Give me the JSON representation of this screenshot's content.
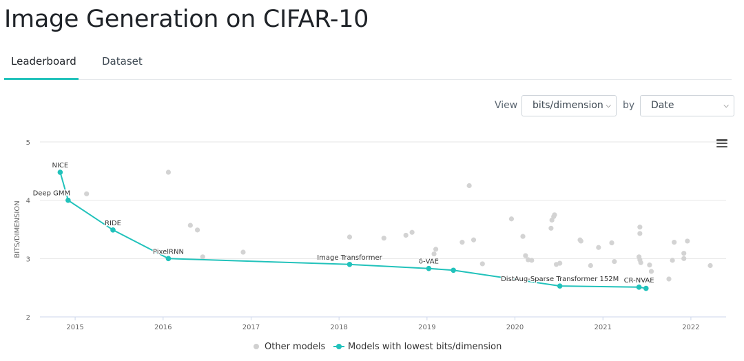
{
  "page": {
    "title": "Image Generation on CIFAR-10"
  },
  "tabs": [
    {
      "label": "Leaderboard",
      "active": true
    },
    {
      "label": "Dataset",
      "active": false
    }
  ],
  "controls": {
    "view_label": "View",
    "metric_selected": "bits/dimension",
    "by_label": "by",
    "sort_selected": "Date"
  },
  "icons": {
    "chevron": "chevron-down-icon",
    "menu": "hamburger-menu-icon"
  },
  "colors": {
    "accent": "#21c2bb",
    "other": "#d3d3d3",
    "grid": "#e6e6e6"
  },
  "chart_data": {
    "type": "scatter",
    "ylabel": "BITS/DIMENSION",
    "xlabel": "",
    "xlim": [
      2014.6,
      2022.4
    ],
    "ylim": [
      2,
      5.2
    ],
    "x_ticks": [
      "2015",
      "2016",
      "2017",
      "2018",
      "2019",
      "2020",
      "2021",
      "2022"
    ],
    "y_ticks": [
      "2",
      "3",
      "4",
      "5"
    ],
    "grid": "horizontal",
    "legend": [
      "Other models",
      "Models with lowest bits/dimension"
    ],
    "legend_position": "bottom-center",
    "best_series": {
      "name": "Models with lowest bits/dimension",
      "points": [
        {
          "x": 2014.83,
          "y": 4.48,
          "label": "NICE"
        },
        {
          "x": 2014.92,
          "y": 4.0,
          "label": "Deep GMM"
        },
        {
          "x": 2015.43,
          "y": 3.49,
          "label": "RIDE"
        },
        {
          "x": 2016.06,
          "y": 3.0,
          "label": "PixelRNN"
        },
        {
          "x": 2018.12,
          "y": 2.9,
          "label": "Image Transformer"
        },
        {
          "x": 2019.02,
          "y": 2.83,
          "label": "δ-VAE"
        },
        {
          "x": 2019.3,
          "y": 2.8,
          "label": ""
        },
        {
          "x": 2020.51,
          "y": 2.53,
          "label": "DistAug-Sparse Transformer 152M"
        },
        {
          "x": 2021.41,
          "y": 2.51,
          "label": "CR-NVAE"
        },
        {
          "x": 2021.49,
          "y": 2.49,
          "label": ""
        }
      ]
    },
    "other_series": {
      "name": "Other models",
      "points": [
        {
          "x": 2015.13,
          "y": 4.11
        },
        {
          "x": 2016.06,
          "y": 4.48
        },
        {
          "x": 2016.31,
          "y": 3.57
        },
        {
          "x": 2016.39,
          "y": 3.49
        },
        {
          "x": 2016.45,
          "y": 3.03
        },
        {
          "x": 2016.91,
          "y": 3.11
        },
        {
          "x": 2018.12,
          "y": 3.37
        },
        {
          "x": 2018.51,
          "y": 3.35
        },
        {
          "x": 2018.76,
          "y": 3.4
        },
        {
          "x": 2018.83,
          "y": 3.45
        },
        {
          "x": 2019.08,
          "y": 3.08
        },
        {
          "x": 2019.1,
          "y": 3.16
        },
        {
          "x": 2019.4,
          "y": 3.28
        },
        {
          "x": 2019.48,
          "y": 4.25
        },
        {
          "x": 2019.53,
          "y": 3.32
        },
        {
          "x": 2019.63,
          "y": 2.91
        },
        {
          "x": 2019.96,
          "y": 3.68
        },
        {
          "x": 2020.09,
          "y": 3.38
        },
        {
          "x": 2020.12,
          "y": 3.05
        },
        {
          "x": 2020.15,
          "y": 2.98
        },
        {
          "x": 2020.19,
          "y": 2.97
        },
        {
          "x": 2020.41,
          "y": 3.52
        },
        {
          "x": 2020.42,
          "y": 3.66
        },
        {
          "x": 2020.44,
          "y": 3.72
        },
        {
          "x": 2020.45,
          "y": 3.75
        },
        {
          "x": 2020.47,
          "y": 2.9
        },
        {
          "x": 2020.51,
          "y": 2.92
        },
        {
          "x": 2020.74,
          "y": 3.32
        },
        {
          "x": 2020.75,
          "y": 3.3
        },
        {
          "x": 2020.86,
          "y": 2.88
        },
        {
          "x": 2020.95,
          "y": 3.19
        },
        {
          "x": 2021.1,
          "y": 3.27
        },
        {
          "x": 2021.13,
          "y": 2.95
        },
        {
          "x": 2021.41,
          "y": 3.03
        },
        {
          "x": 2021.42,
          "y": 2.98
        },
        {
          "x": 2021.43,
          "y": 2.93
        },
        {
          "x": 2021.42,
          "y": 3.54
        },
        {
          "x": 2021.42,
          "y": 3.43
        },
        {
          "x": 2021.53,
          "y": 2.89
        },
        {
          "x": 2021.55,
          "y": 2.78
        },
        {
          "x": 2021.75,
          "y": 2.65
        },
        {
          "x": 2021.79,
          "y": 2.97
        },
        {
          "x": 2021.81,
          "y": 3.28
        },
        {
          "x": 2021.92,
          "y": 3.0
        },
        {
          "x": 2021.92,
          "y": 3.09
        },
        {
          "x": 2021.96,
          "y": 3.3
        },
        {
          "x": 2022.22,
          "y": 2.88
        }
      ]
    }
  }
}
